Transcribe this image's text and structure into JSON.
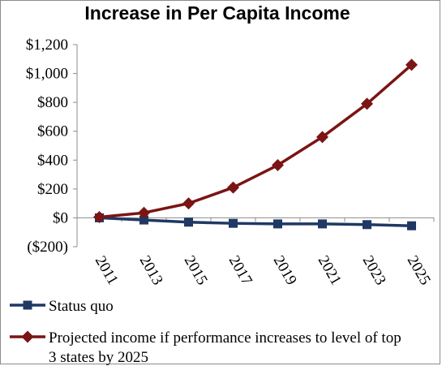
{
  "chart_data": {
    "type": "line",
    "title": "Increase in Per Capita Income",
    "xlabel": "",
    "ylabel": "",
    "categories": [
      "2011",
      "2013",
      "2015",
      "2017",
      "2019",
      "2021",
      "2023",
      "2025"
    ],
    "ylim": [
      -200,
      1200
    ],
    "y_ticks": [
      1200,
      1000,
      800,
      600,
      400,
      200,
      0,
      -200
    ],
    "y_tick_labels": [
      "$1,200",
      "$1,000",
      "$800",
      "$600",
      "$400",
      "$200",
      "$0",
      "($200)"
    ],
    "grid": false,
    "legend_position": "bottom",
    "series": [
      {
        "name": "Status quo",
        "color": "#1f3864",
        "marker": "square",
        "values": [
          0,
          -15,
          -30,
          -38,
          -42,
          -42,
          -47,
          -55
        ]
      },
      {
        "name": "Projected income if performance increases to level of top 3 states by 2025",
        "name_lines": [
          "Projected income if performance increases to level of top",
          "3 states by 2025"
        ],
        "color": "#7b1414",
        "marker": "diamond",
        "values": [
          5,
          35,
          100,
          210,
          365,
          560,
          790,
          1060
        ]
      }
    ]
  }
}
